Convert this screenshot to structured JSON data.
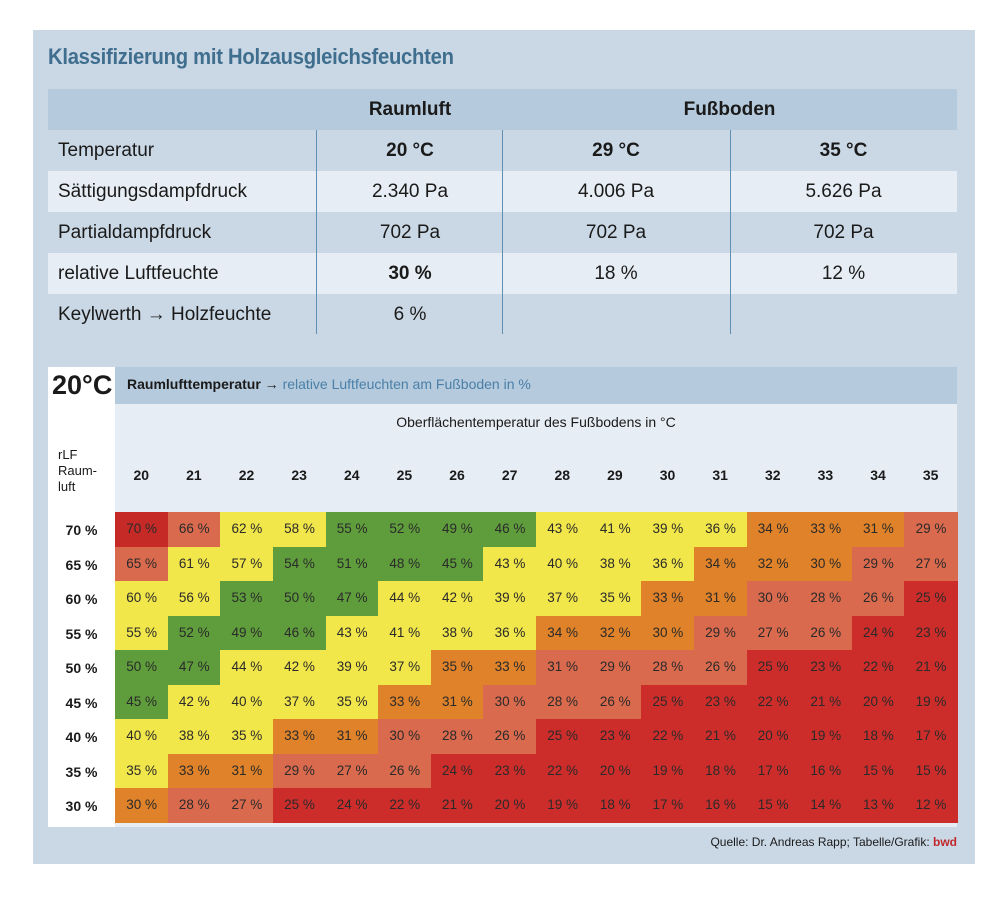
{
  "title": "Klassifizierung mit Holzausgleichsfeuchten",
  "top_table": {
    "header": {
      "raumluft": "Raumluft",
      "fussboden": "Fußboden"
    },
    "rows": [
      {
        "label": "Temperatur",
        "values": [
          "20 °C",
          "29 °C",
          "35 °C"
        ]
      },
      {
        "label": "Sättigungsdampfdruck",
        "values": [
          "2.340 Pa",
          "4.006 Pa",
          "5.626 Pa"
        ]
      },
      {
        "label": "Partialdampfdruck",
        "values": [
          "702 Pa",
          "702 Pa",
          "702 Pa"
        ]
      },
      {
        "label": "relative Luftfeuchte",
        "values": [
          "30 %",
          "18 %",
          "12 %"
        ]
      },
      {
        "label": "Keylwerth → Holzfeuchte",
        "values": [
          "6 %",
          "",
          ""
        ]
      }
    ]
  },
  "grid": {
    "room_temp": "20°C",
    "heading_bold": "Raumlufttemperatur",
    "heading_arrow": " → ",
    "heading_rest": "relative Luftfeuchten am Fußboden in %",
    "subtitle": "Oberflächentemperatur des Fußbodens in °C",
    "row_axis_label": [
      "rLF",
      "Raum-",
      "luft"
    ],
    "columns": [
      "20",
      "21",
      "22",
      "23",
      "24",
      "25",
      "26",
      "27",
      "28",
      "29",
      "30",
      "31",
      "32",
      "33",
      "34",
      "35"
    ],
    "row_labels": [
      "70 %",
      "65 %",
      "60 %",
      "55 %",
      "50 %",
      "45 %",
      "40 %",
      "35 %",
      "30 %"
    ],
    "values": [
      [
        70,
        66,
        62,
        58,
        55,
        52,
        49,
        46,
        43,
        41,
        39,
        36,
        34,
        33,
        31,
        29
      ],
      [
        65,
        61,
        57,
        54,
        51,
        48,
        45,
        43,
        40,
        38,
        36,
        34,
        32,
        30,
        29,
        27
      ],
      [
        60,
        56,
        53,
        50,
        47,
        44,
        42,
        39,
        37,
        35,
        33,
        31,
        30,
        28,
        26,
        25
      ],
      [
        55,
        52,
        49,
        46,
        43,
        41,
        38,
        36,
        34,
        32,
        30,
        29,
        27,
        26,
        24,
        23
      ],
      [
        50,
        47,
        44,
        42,
        39,
        37,
        35,
        33,
        31,
        29,
        28,
        26,
        25,
        23,
        22,
        21
      ],
      [
        45,
        42,
        40,
        37,
        35,
        33,
        31,
        30,
        28,
        26,
        25,
        23,
        22,
        21,
        20,
        19
      ],
      [
        40,
        38,
        35,
        33,
        31,
        30,
        28,
        26,
        25,
        23,
        22,
        21,
        20,
        19,
        18,
        17
      ],
      [
        35,
        33,
        31,
        29,
        27,
        26,
        24,
        23,
        22,
        20,
        19,
        18,
        17,
        16,
        15,
        15
      ],
      [
        30,
        28,
        27,
        25,
        24,
        22,
        21,
        20,
        19,
        18,
        17,
        16,
        15,
        14,
        13,
        12
      ]
    ],
    "unit": "%",
    "classes": [
      [
        "dark-red",
        "salmon",
        "yellow",
        "yellow",
        "green",
        "green",
        "green",
        "green",
        "yellow",
        "yellow",
        "yellow",
        "yellow",
        "orange",
        "orange",
        "orange",
        "salmon"
      ],
      [
        "salmon",
        "yellow",
        "yellow",
        "green",
        "green",
        "green",
        "green",
        "yellow",
        "yellow",
        "yellow",
        "yellow",
        "orange",
        "orange",
        "orange",
        "salmon",
        "salmon"
      ],
      [
        "yellow",
        "yellow",
        "green",
        "green",
        "green",
        "yellow",
        "yellow",
        "yellow",
        "yellow",
        "yellow",
        "orange",
        "orange",
        "salmon",
        "salmon",
        "salmon",
        "red"
      ],
      [
        "yellow",
        "green",
        "green",
        "green",
        "yellow",
        "yellow",
        "yellow",
        "yellow",
        "orange",
        "orange",
        "orange",
        "salmon",
        "salmon",
        "salmon",
        "red",
        "red"
      ],
      [
        "green",
        "green",
        "yellow",
        "yellow",
        "yellow",
        "yellow",
        "orange",
        "orange",
        "salmon",
        "salmon",
        "salmon",
        "salmon",
        "red",
        "red",
        "red",
        "red"
      ],
      [
        "green",
        "yellow",
        "yellow",
        "yellow",
        "yellow",
        "orange",
        "orange",
        "salmon",
        "salmon",
        "salmon",
        "red",
        "red",
        "red",
        "red",
        "red",
        "red"
      ],
      [
        "yellow",
        "yellow",
        "yellow",
        "orange",
        "orange",
        "salmon",
        "salmon",
        "salmon",
        "red",
        "red",
        "red",
        "red",
        "red",
        "red",
        "red",
        "red"
      ],
      [
        "yellow",
        "orange",
        "orange",
        "salmon",
        "salmon",
        "salmon",
        "red",
        "red",
        "red",
        "red",
        "red",
        "red",
        "red",
        "red",
        "red",
        "red"
      ],
      [
        "orange",
        "salmon",
        "salmon",
        "red",
        "red",
        "red",
        "red",
        "red",
        "red",
        "red",
        "red",
        "red",
        "red",
        "red",
        "red",
        "red"
      ]
    ],
    "colors": {
      "dark-red": "#c62a27",
      "red": "#cd2d2a",
      "salmon": "#d96a4e",
      "orange": "#df8229",
      "yellow": "#f1e64a",
      "green": "#5f9d3c"
    }
  },
  "footer": {
    "source": "Quelle: Dr. Andreas Rapp; Tabelle/Grafik: ",
    "brand": "bwd"
  }
}
